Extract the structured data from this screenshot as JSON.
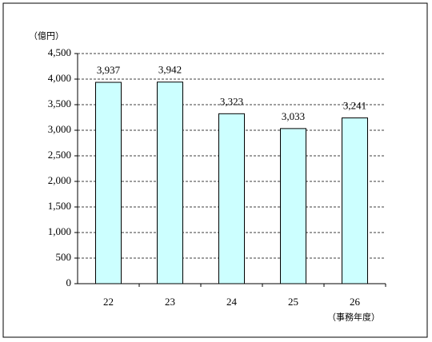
{
  "chart_data": {
    "type": "bar",
    "y_unit": "（億円）",
    "x_unit": "（事務年度）",
    "categories": [
      "22",
      "23",
      "24",
      "25",
      "26"
    ],
    "values": [
      3937,
      3942,
      3323,
      3033,
      3241
    ],
    "value_labels": [
      "3,937",
      "3,942",
      "3,323",
      "3,033",
      "3,241"
    ],
    "color": "#ccffff",
    "ylim": [
      0,
      4500
    ],
    "yticks": [
      0,
      500,
      {
        "value": 1000,
        "label": "1,000"
      },
      {
        "value": 1500,
        "label": "1,500"
      },
      {
        "value": 2000,
        "label": "2,000"
      },
      {
        "value": 2500,
        "label": "2,500"
      },
      {
        "value": 3000,
        "label": "3,000"
      },
      {
        "value": 3500,
        "label": "3,500"
      },
      {
        "value": 4000,
        "label": "4,000"
      },
      {
        "value": 4500,
        "label": "4,500"
      }
    ],
    "grid": true
  }
}
